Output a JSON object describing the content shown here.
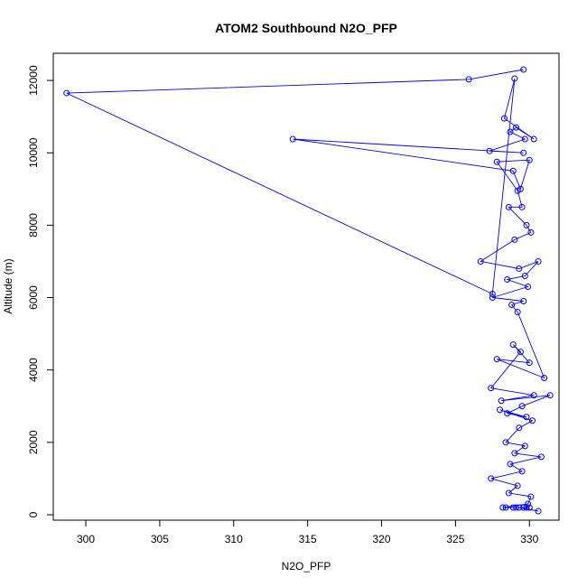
{
  "chart_data": {
    "type": "line",
    "title": "ATOM2 Southbound N2O_PFP",
    "xlabel": "N2O_PFP",
    "ylabel": "Altitude (m)",
    "xlim": [
      297.8,
      332.0
    ],
    "ylim": [
      -150,
      12750
    ],
    "x_ticks": [
      300,
      305,
      310,
      315,
      320,
      325,
      330
    ],
    "y_ticks": [
      0,
      2000,
      4000,
      6000,
      8000,
      10000,
      12000
    ],
    "color": "#0000ff",
    "marker": "open-circle",
    "grid": false,
    "series": [
      {
        "x": [
          329.6,
          325.9,
          298.7,
          327.5,
          329.0,
          328.3,
          330.3,
          329.1,
          328.7,
          329.7,
          327.3,
          329.6,
          314.0,
          328.9,
          329.4,
          330.0,
          327.8,
          329.2,
          329.5,
          328.6,
          329.8,
          330.1,
          329.0,
          326.7,
          329.3,
          330.6,
          329.7,
          328.5,
          329.9,
          327.5,
          329.6,
          328.8,
          329.2,
          331.0,
          327.8,
          330.0,
          328.9,
          329.4,
          327.4,
          330.3,
          328.1,
          331.4,
          329.5,
          328.5,
          329.8,
          328.0,
          330.2,
          329.3,
          328.4,
          329.7,
          329.0,
          330.8,
          328.7,
          329.5,
          327.4,
          329.2,
          328.6,
          330.1,
          329.9,
          328.2,
          329.6,
          328.9,
          330.0,
          329.1,
          328.4,
          329.8,
          329.3,
          330.6
        ],
        "y": [
          12300,
          12030,
          11650,
          6100,
          12050,
          10950,
          10380,
          10700,
          10580,
          10380,
          10050,
          10000,
          10380,
          9500,
          9000,
          9800,
          9750,
          8950,
          8500,
          8500,
          8000,
          7800,
          7600,
          7000,
          6800,
          7000,
          6600,
          6500,
          6300,
          6000,
          5900,
          5800,
          5600,
          3780,
          4300,
          4200,
          4700,
          4500,
          3500,
          3300,
          3150,
          3300,
          3000,
          2800,
          2700,
          2900,
          2600,
          2400,
          2000,
          1900,
          1700,
          1600,
          1400,
          1200,
          1000,
          800,
          600,
          500,
          300,
          200,
          200,
          200,
          200,
          200,
          200,
          200,
          200,
          100
        ]
      }
    ]
  }
}
